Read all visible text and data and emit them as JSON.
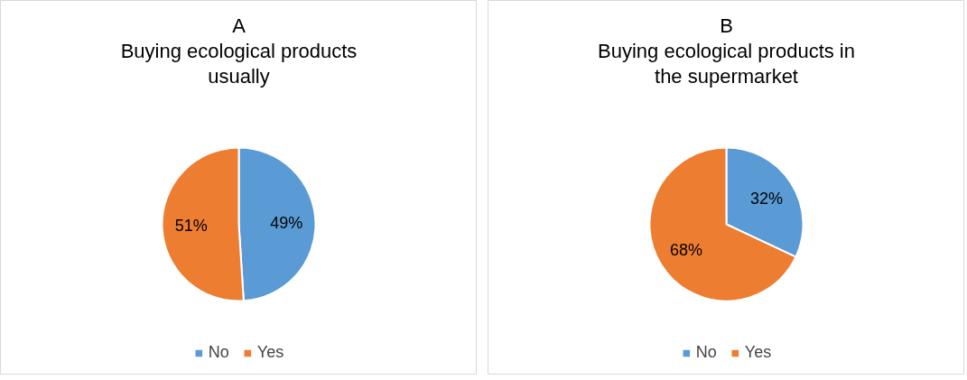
{
  "chart_data": [
    {
      "type": "pie",
      "title": "A",
      "subtitle": "Buying ecological products usually",
      "categories": [
        "No",
        "Yes"
      ],
      "values": [
        49,
        51
      ],
      "colors": [
        "#5b9bd5",
        "#ed7d31"
      ],
      "value_labels": [
        "49%",
        "51%"
      ],
      "legend": "bottom"
    },
    {
      "type": "pie",
      "title": "B",
      "subtitle": "Buying ecological products in the supermarket",
      "categories": [
        "No",
        "Yes"
      ],
      "values": [
        32,
        68
      ],
      "colors": [
        "#5b9bd5",
        "#ed7d31"
      ],
      "value_labels": [
        "32%",
        "68%"
      ],
      "legend": "bottom"
    }
  ]
}
